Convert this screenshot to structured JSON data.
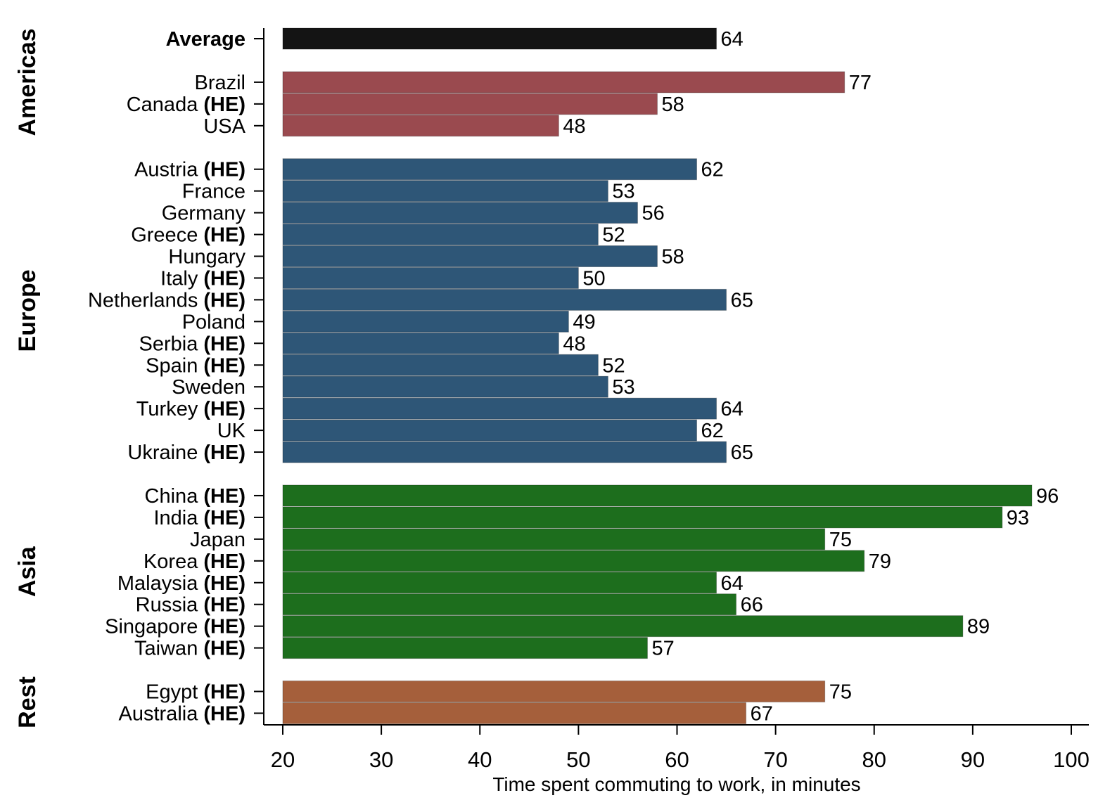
{
  "chart_data": {
    "type": "bar",
    "orientation": "horizontal",
    "xlabel": "Time spent commuting to work, in minutes",
    "xlim": [
      20,
      100
    ],
    "xticks": [
      20,
      30,
      40,
      50,
      60,
      70,
      80,
      90,
      100
    ],
    "grid": false,
    "bold_suffix": "(HE)",
    "groups": [
      {
        "name": "Americas",
        "color": "#9a4a4f",
        "items": [
          {
            "label": "Average",
            "value": 64,
            "color": "#141414",
            "bold": true
          },
          {
            "label": "Brazil",
            "value": 77
          },
          {
            "label": "Canada",
            "suffix": "(HE)",
            "value": 58
          },
          {
            "label": "USA",
            "value": 48
          }
        ]
      },
      {
        "name": "Europe",
        "color": "#2e5677",
        "items": [
          {
            "label": "Austria",
            "suffix": "(HE)",
            "value": 62
          },
          {
            "label": "France",
            "value": 53
          },
          {
            "label": "Germany",
            "value": 56
          },
          {
            "label": "Greece",
            "suffix": "(HE)",
            "value": 52
          },
          {
            "label": "Hungary",
            "value": 58
          },
          {
            "label": "Italy",
            "suffix": "(HE)",
            "value": 50
          },
          {
            "label": "Netherlands",
            "suffix": "(HE)",
            "value": 65
          },
          {
            "label": "Poland",
            "value": 49
          },
          {
            "label": "Serbia",
            "suffix": "(HE)",
            "value": 48
          },
          {
            "label": "Spain",
            "suffix": "(HE)",
            "value": 52
          },
          {
            "label": "Sweden",
            "value": 53
          },
          {
            "label": "Turkey",
            "suffix": "(HE)",
            "value": 64
          },
          {
            "label": "UK",
            "value": 62
          },
          {
            "label": "Ukraine",
            "suffix": "(HE)",
            "value": 65
          }
        ]
      },
      {
        "name": "Asia",
        "color": "#1d6e1d",
        "items": [
          {
            "label": "China",
            "suffix": "(HE)",
            "value": 96
          },
          {
            "label": "India",
            "suffix": "(HE)",
            "value": 93
          },
          {
            "label": "Japan",
            "value": 75
          },
          {
            "label": "Korea",
            "suffix": "(HE)",
            "value": 79
          },
          {
            "label": "Malaysia",
            "suffix": "(HE)",
            "value": 64
          },
          {
            "label": "Russia",
            "suffix": "(HE)",
            "value": 66
          },
          {
            "label": "Singapore",
            "suffix": "(HE)",
            "value": 89
          },
          {
            "label": "Taiwan",
            "suffix": "(HE)",
            "value": 57
          }
        ]
      },
      {
        "name": "Rest",
        "color": "#a55f3b",
        "items": [
          {
            "label": "Egypt",
            "suffix": "(HE)",
            "value": 75
          },
          {
            "label": "Australia",
            "suffix": "(HE)",
            "value": 67
          }
        ]
      }
    ]
  }
}
